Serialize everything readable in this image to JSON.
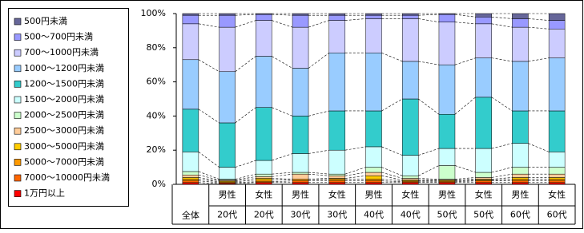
{
  "chart_data": {
    "type": "stacked-bar",
    "categories": [
      [
        "全体"
      ],
      [
        "男性",
        "20代"
      ],
      [
        "女性",
        "20代"
      ],
      [
        "男性",
        "30代"
      ],
      [
        "女性",
        "30代"
      ],
      [
        "男性",
        "40代"
      ],
      [
        "女性",
        "40代"
      ],
      [
        "男性",
        "50代"
      ],
      [
        "女性",
        "50代"
      ],
      [
        "男性",
        "60代"
      ],
      [
        "女性",
        "60代"
      ]
    ],
    "series": [
      {
        "name": "500円未満",
        "color": "#666699",
        "values": [
          1,
          1,
          0.5,
          1,
          1,
          1,
          1,
          0.5,
          2,
          3,
          4
        ]
      },
      {
        "name": "500～700円未満",
        "color": "#9999ff",
        "values": [
          5,
          7,
          3.5,
          7,
          3,
          2,
          2,
          4.5,
          4,
          5,
          5
        ]
      },
      {
        "name": "700～1000円未満",
        "color": "#ccccff",
        "values": [
          21,
          26,
          21,
          24,
          19,
          20,
          25,
          25,
          20,
          20,
          17
        ]
      },
      {
        "name": "1000～1200円未満",
        "color": "#99ccff",
        "values": [
          29,
          30,
          30,
          28,
          34,
          34,
          22,
          29,
          23,
          29,
          31
        ]
      },
      {
        "name": "1200～1500円未満",
        "color": "#33cccc",
        "values": [
          25,
          26,
          31,
          22,
          23,
          21,
          33,
          20,
          30,
          19,
          24
        ]
      },
      {
        "name": "1500～2000円未満",
        "color": "#ccffff",
        "values": [
          11.5,
          7,
          8,
          11,
          14,
          12,
          12,
          10,
          14,
          14,
          9
        ]
      },
      {
        "name": "2000～2500円未満",
        "color": "#ccffcc",
        "values": [
          2,
          0.5,
          1.5,
          1,
          1,
          3,
          1.5,
          8,
          3,
          4,
          4
        ]
      },
      {
        "name": "2500～3000円未満",
        "color": "#ffcc99",
        "values": [
          1.5,
          0.5,
          1,
          3,
          1.5,
          2,
          1,
          0.5,
          1,
          2,
          2
        ]
      },
      {
        "name": "3000～5000円未満",
        "color": "#ffcc00",
        "values": [
          1,
          0.5,
          1,
          0,
          0.5,
          2,
          0.5,
          0.5,
          0.5,
          1,
          1
        ]
      },
      {
        "name": "5000～7000円未満",
        "color": "#ff9900",
        "values": [
          1,
          0.5,
          1,
          1,
          1,
          1,
          0.5,
          0.5,
          0.5,
          1,
          1
        ]
      },
      {
        "name": "7000～10000円未満",
        "color": "#ff6600",
        "values": [
          1,
          0.5,
          0.5,
          1,
          1,
          1,
          0.5,
          0.5,
          1,
          1,
          1
        ]
      },
      {
        "name": "1万円以上",
        "color": "#ff0000",
        "values": [
          1,
          0.5,
          1,
          1,
          1,
          1,
          1,
          1,
          1,
          1,
          1
        ]
      }
    ],
    "ylim": [
      0,
      100
    ],
    "yticks": [
      {
        "value": 0,
        "label": "0%"
      },
      {
        "value": 20,
        "label": "20%"
      },
      {
        "value": 40,
        "label": "40%"
      },
      {
        "value": 60,
        "label": "60%"
      },
      {
        "value": 80,
        "label": "80%"
      },
      {
        "value": 100,
        "label": "100%"
      }
    ]
  }
}
